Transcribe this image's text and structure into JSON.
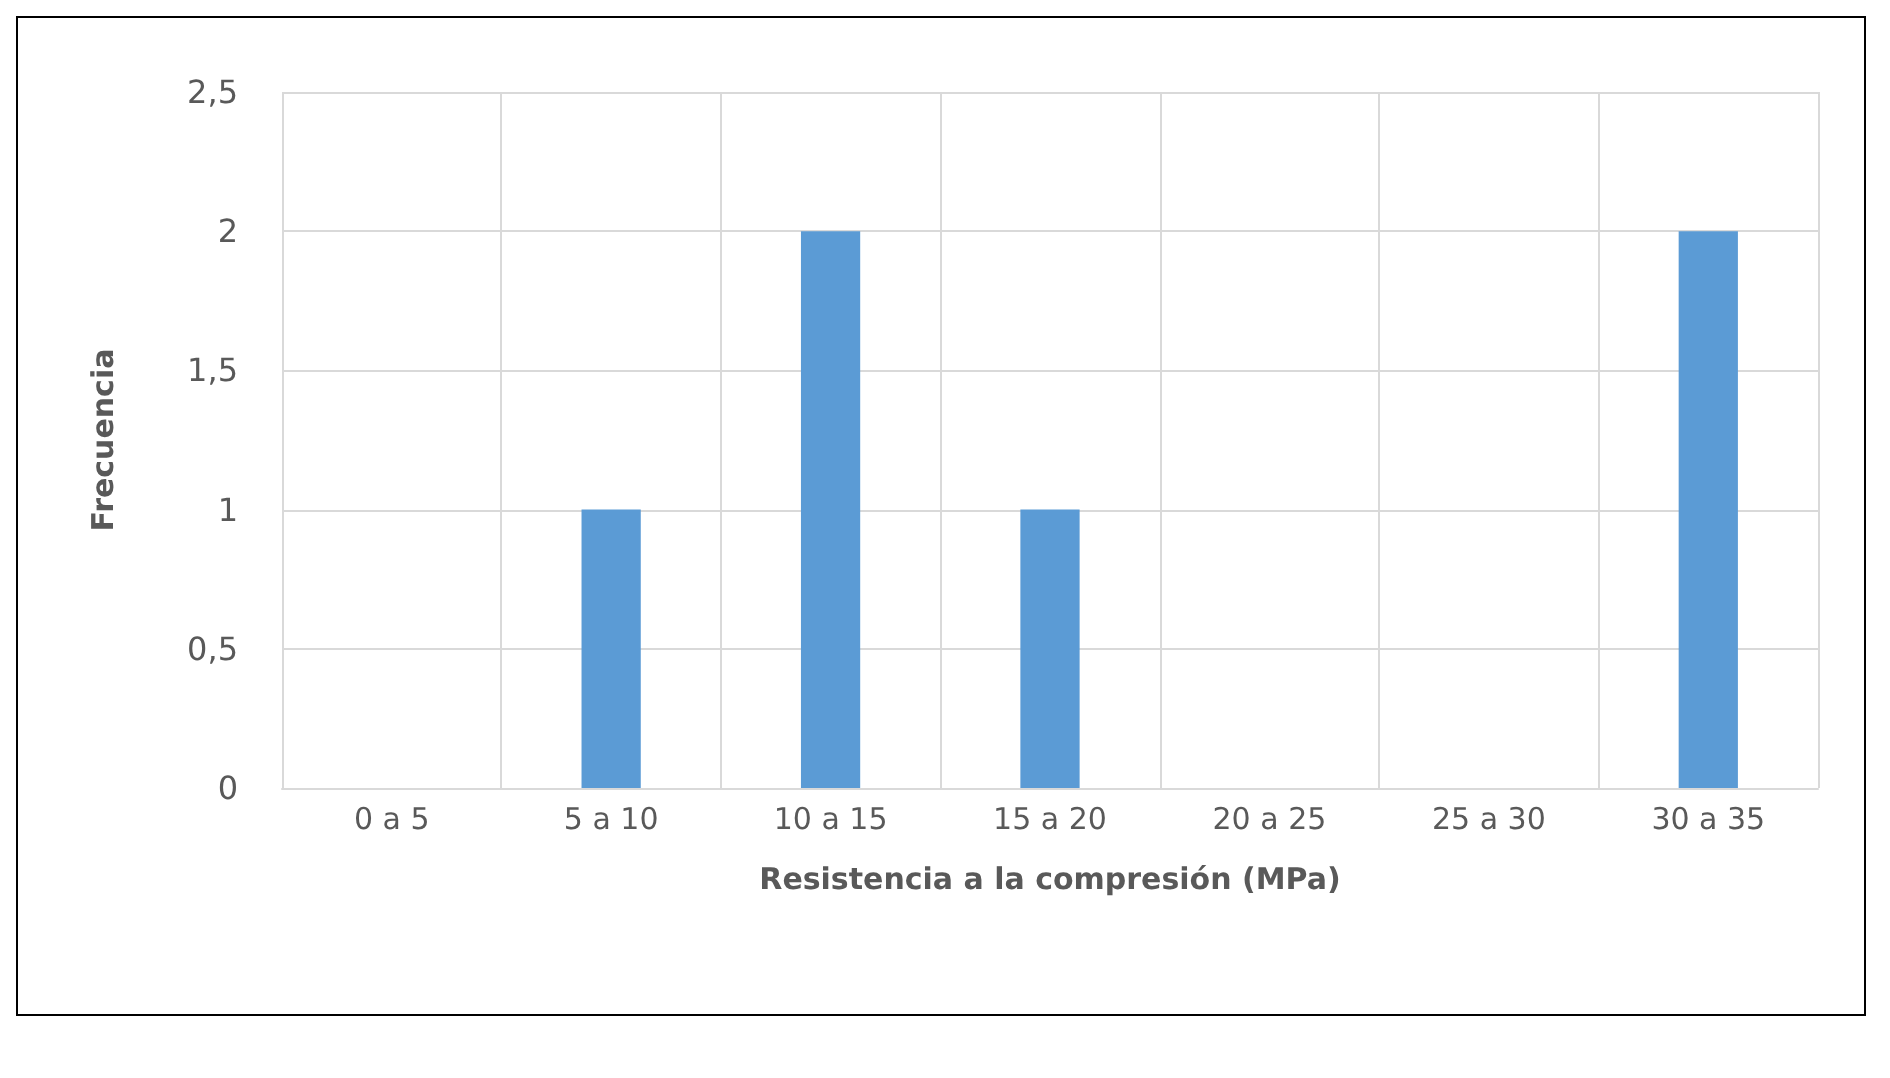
{
  "chart_data": {
    "type": "bar",
    "xlabel": "Resistencia a la compresión (MPa)",
    "ylabel": "Frecuencia",
    "categories": [
      "0 a 5",
      "5 a 10",
      "10 a 15",
      "15 a 20",
      "20 a 25",
      "25 a 30",
      "30 a 35"
    ],
    "values": [
      0,
      1,
      2,
      1,
      0,
      0,
      2
    ],
    "color": "#5b9bd5",
    "ylim": [
      0,
      2.5
    ],
    "yticks": [
      0,
      {
        "value": 0.5,
        "label": "0,5"
      },
      1,
      {
        "value": 1.5,
        "label": "1,5"
      },
      2,
      {
        "value": 2.5,
        "label": "2,5"
      }
    ],
    "grid": true
  }
}
